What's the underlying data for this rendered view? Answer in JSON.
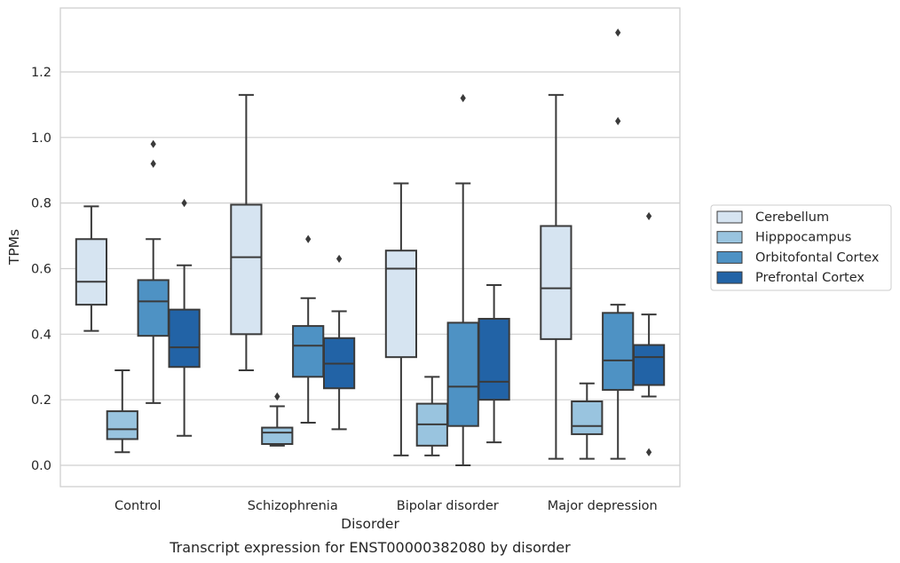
{
  "colors": {
    "Cerebellum": "#d6e4f1",
    "Hipppocampus": "#99c4df",
    "Orbitofontal Cortex": "#4e92c4",
    "Prefrontal Cortex": "#2263a6",
    "line": "#3a3a3a",
    "grid": "#cfcfcf"
  },
  "caption": "Transcript expression for ENST00000382080 by disorder",
  "chart_data": {
    "type": "box",
    "title": "",
    "xlabel": "Disorder",
    "ylabel": "TPMs",
    "categories": [
      "Control",
      "Schizophrenia",
      "Bipolar disorder",
      "Major depression"
    ],
    "ylim": [
      -0.065,
      1.395
    ],
    "yticks": [
      "0.0",
      "0.2",
      "0.4",
      "0.6",
      "0.8",
      "1.0",
      "1.2"
    ],
    "ytick_values": [
      0.0,
      0.2,
      0.4,
      0.6,
      0.8,
      1.0,
      1.2
    ],
    "grid": "horizontal",
    "legend_position": "right",
    "series": [
      {
        "name": "Cerebellum",
        "boxes": [
          {
            "whislo": 0.41,
            "q1": 0.49,
            "med": 0.56,
            "q3": 0.69,
            "whishi": 0.79,
            "fliers": []
          },
          {
            "whislo": 0.29,
            "q1": 0.4,
            "med": 0.635,
            "q3": 0.795,
            "whishi": 1.13,
            "fliers": []
          },
          {
            "whislo": 0.03,
            "q1": 0.33,
            "med": 0.6,
            "q3": 0.655,
            "whishi": 0.86,
            "fliers": []
          },
          {
            "whislo": 0.02,
            "q1": 0.385,
            "med": 0.54,
            "q3": 0.73,
            "whishi": 1.13,
            "fliers": []
          }
        ]
      },
      {
        "name": "Hipppocampus",
        "boxes": [
          {
            "whislo": 0.04,
            "q1": 0.08,
            "med": 0.11,
            "q3": 0.165,
            "whishi": 0.29,
            "fliers": []
          },
          {
            "whislo": 0.06,
            "q1": 0.065,
            "med": 0.1,
            "q3": 0.115,
            "whishi": 0.18,
            "fliers": [
              0.21
            ]
          },
          {
            "whislo": 0.03,
            "q1": 0.06,
            "med": 0.125,
            "q3": 0.188,
            "whishi": 0.27,
            "fliers": []
          },
          {
            "whislo": 0.02,
            "q1": 0.095,
            "med": 0.12,
            "q3": 0.195,
            "whishi": 0.25,
            "fliers": []
          }
        ]
      },
      {
        "name": "Orbitofontal Cortex",
        "boxes": [
          {
            "whislo": 0.19,
            "q1": 0.395,
            "med": 0.5,
            "q3": 0.565,
            "whishi": 0.69,
            "fliers": [
              0.92,
              0.98
            ]
          },
          {
            "whislo": 0.13,
            "q1": 0.27,
            "med": 0.365,
            "q3": 0.425,
            "whishi": 0.51,
            "fliers": [
              0.69
            ]
          },
          {
            "whislo": 0.0,
            "q1": 0.12,
            "med": 0.24,
            "q3": 0.435,
            "whishi": 0.86,
            "fliers": [
              1.12
            ]
          },
          {
            "whislo": 0.02,
            "q1": 0.23,
            "med": 0.32,
            "q3": 0.465,
            "whishi": 0.49,
            "fliers": [
              1.05,
              1.32
            ]
          }
        ]
      },
      {
        "name": "Prefrontal Cortex",
        "boxes": [
          {
            "whislo": 0.09,
            "q1": 0.3,
            "med": 0.36,
            "q3": 0.475,
            "whishi": 0.61,
            "fliers": [
              0.8
            ]
          },
          {
            "whislo": 0.11,
            "q1": 0.235,
            "med": 0.31,
            "q3": 0.388,
            "whishi": 0.47,
            "fliers": [
              0.63
            ]
          },
          {
            "whislo": 0.07,
            "q1": 0.2,
            "med": 0.255,
            "q3": 0.447,
            "whishi": 0.55,
            "fliers": []
          },
          {
            "whislo": 0.21,
            "q1": 0.245,
            "med": 0.33,
            "q3": 0.367,
            "whishi": 0.46,
            "fliers": [
              0.04,
              0.76
            ]
          }
        ]
      }
    ]
  }
}
